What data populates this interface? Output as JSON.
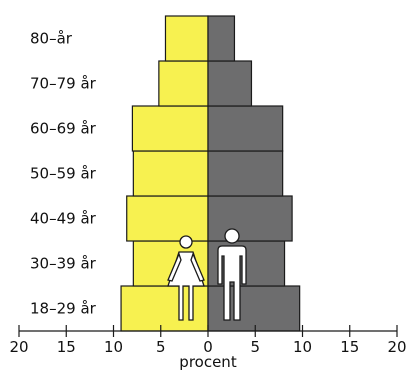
{
  "chart_data": {
    "type": "bar",
    "orientation": "horizontal",
    "layout": "population-pyramid",
    "categories": [
      "18–29 år",
      "30–39 år",
      "40–49 år",
      "50–59 år",
      "60–69 år",
      "70–79 år",
      "80–år"
    ],
    "series": [
      {
        "side": "left",
        "color": "#f7f150",
        "values": [
          9.2,
          7.9,
          8.6,
          7.9,
          8.0,
          5.2,
          4.5
        ]
      },
      {
        "side": "right",
        "color": "#6d6d6e",
        "values": [
          9.7,
          8.1,
          8.9,
          7.9,
          7.9,
          4.6,
          2.8
        ]
      }
    ],
    "xlabel": "procent",
    "xlim": [
      -20,
      20
    ],
    "xticks": [
      -20,
      -15,
      -10,
      -5,
      0,
      5,
      10,
      15,
      20
    ],
    "xtick_labels": [
      "20",
      "15",
      "10",
      "5",
      "0",
      "5",
      "10",
      "15",
      "20"
    ],
    "icons": [
      "female-figure-icon",
      "male-figure-icon"
    ],
    "grid": false
  }
}
